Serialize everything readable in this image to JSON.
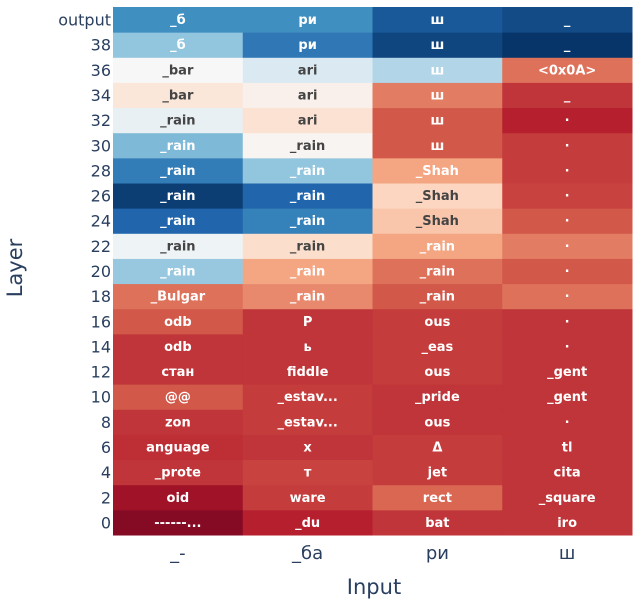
{
  "chart_data": {
    "type": "heatmap",
    "xlabel": "Input",
    "ylabel": "Layer",
    "x_categories": [
      "_-",
      "_ба",
      "ри",
      "ш"
    ],
    "y_categories": [
      "0",
      "2",
      "4",
      "6",
      "8",
      "10",
      "12",
      "14",
      "16",
      "18",
      "20",
      "22",
      "24",
      "26",
      "28",
      "30",
      "32",
      "34",
      "36",
      "38",
      "output"
    ],
    "labels": [
      [
        "------...",
        "_du",
        "bat",
        "iro"
      ],
      [
        "oid",
        "ware",
        "rect",
        "_square"
      ],
      [
        "_prote",
        "т",
        "jet",
        "cita"
      ],
      [
        "anguage",
        "x",
        "Δ",
        "tl"
      ],
      [
        "zon",
        "_estav...",
        "ous",
        "·"
      ],
      [
        "@@",
        "_estav...",
        "_pride",
        "_gent"
      ],
      [
        "стан",
        "fiddle",
        "ous",
        "_gent"
      ],
      [
        "odb",
        "ь",
        "_eas",
        "·"
      ],
      [
        "odb",
        "Р",
        "ous",
        "·"
      ],
      [
        "_Bulgar",
        "_rain",
        "_rain",
        "·"
      ],
      [
        "_rain",
        "_rain",
        "_rain",
        "·"
      ],
      [
        "_rain",
        "_rain",
        "_rain",
        "·"
      ],
      [
        "_rain",
        "_rain",
        "_Shah",
        "·"
      ],
      [
        "_rain",
        "_rain",
        "_Shah",
        "·"
      ],
      [
        "_rain",
        "_rain",
        "_Shah",
        "·"
      ],
      [
        "_rain",
        "_rain",
        "ш",
        "·"
      ],
      [
        "_rain",
        "ari",
        "ш",
        "·"
      ],
      [
        "_bar",
        "ari",
        "ш",
        "_"
      ],
      [
        "_bar",
        "ari",
        "ш",
        "<0x0A>"
      ],
      [
        "_б",
        "ри",
        "ш",
        "_"
      ],
      [
        "_б",
        "ри",
        "ш",
        "_"
      ]
    ],
    "values": [
      [
        0.92,
        0.78,
        0.72,
        0.72
      ],
      [
        0.85,
        0.7,
        0.58,
        0.72
      ],
      [
        0.72,
        0.68,
        0.7,
        0.72
      ],
      [
        0.74,
        0.72,
        0.7,
        0.72
      ],
      [
        0.72,
        0.7,
        0.72,
        0.72
      ],
      [
        0.62,
        0.7,
        0.72,
        0.72
      ],
      [
        0.72,
        0.72,
        0.7,
        0.72
      ],
      [
        0.72,
        0.72,
        0.7,
        0.72
      ],
      [
        0.62,
        0.72,
        0.7,
        0.72
      ],
      [
        0.55,
        0.48,
        0.62,
        0.55
      ],
      [
        -0.38,
        0.4,
        0.55,
        0.62
      ],
      [
        -0.05,
        0.18,
        0.4,
        0.52
      ],
      [
        -0.8,
        -0.68,
        0.28,
        0.62
      ],
      [
        -0.95,
        -0.8,
        0.22,
        0.68
      ],
      [
        -0.7,
        -0.4,
        0.4,
        0.7
      ],
      [
        -0.45,
        0.02,
        0.62,
        0.7
      ],
      [
        -0.08,
        0.15,
        0.62,
        0.78
      ],
      [
        0.12,
        0.05,
        0.52,
        0.72
      ],
      [
        0.0,
        -0.15,
        -0.3,
        0.55
      ],
      [
        -0.4,
        -0.72,
        -0.92,
        -0.98
      ],
      [
        -0.62,
        -0.62,
        -0.85,
        -0.9
      ]
    ],
    "colorscale": "RdBu",
    "colorbar": false
  }
}
